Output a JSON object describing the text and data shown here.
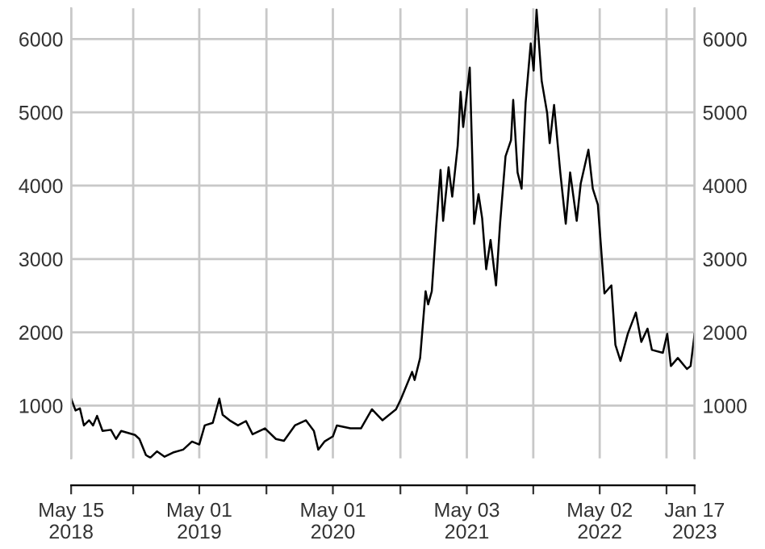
{
  "chart_data": {
    "type": "line",
    "x": [
      "2018-05-15",
      "2018-05-27",
      "2018-06-08",
      "2018-06-19",
      "2018-07-03",
      "2018-07-14",
      "2018-07-25",
      "2018-08-09",
      "2018-09-01",
      "2018-09-15",
      "2018-09-29",
      "2018-11-06",
      "2018-11-18",
      "2018-12-06",
      "2018-12-18",
      "2019-01-05",
      "2019-01-26",
      "2019-02-18",
      "2019-03-18",
      "2019-04-11",
      "2019-05-01",
      "2019-05-16",
      "2019-06-07",
      "2019-06-25",
      "2019-07-04",
      "2019-07-23",
      "2019-08-15",
      "2019-09-06",
      "2019-09-24",
      "2019-10-28",
      "2019-11-27",
      "2019-12-19",
      "2020-01-18",
      "2020-02-17",
      "2020-03-10",
      "2020-03-22",
      "2020-04-08",
      "2020-05-01",
      "2020-05-12",
      "2020-06-18",
      "2020-07-17",
      "2020-08-16",
      "2020-09-14",
      "2020-10-21",
      "2020-11-04",
      "2020-12-04",
      "2020-12-11",
      "2020-12-26",
      "2021-01-10",
      "2021-01-17",
      "2021-01-27",
      "2021-02-08",
      "2021-02-20",
      "2021-02-27",
      "2021-03-14",
      "2021-03-24",
      "2021-04-08",
      "2021-04-16",
      "2021-04-23",
      "2021-05-11",
      "2021-05-23",
      "2021-06-04",
      "2021-06-14",
      "2021-06-25",
      "2021-07-07",
      "2021-07-22",
      "2021-08-02",
      "2021-08-17",
      "2021-09-01",
      "2021-09-07",
      "2021-09-19",
      "2021-09-30",
      "2021-10-11",
      "2021-10-25",
      "2021-11-02",
      "2021-11-10",
      "2021-11-24",
      "2021-12-09",
      "2021-12-16",
      "2021-12-28",
      "2022-01-14",
      "2022-01-29",
      "2022-02-10",
      "2022-02-28",
      "2022-03-11",
      "2022-04-01",
      "2022-04-13",
      "2022-04-27",
      "2022-05-09",
      "2022-05-15",
      "2022-06-03",
      "2022-06-14",
      "2022-06-28",
      "2022-07-18",
      "2022-08-09",
      "2022-08-24",
      "2022-09-10",
      "2022-09-22",
      "2022-10-22",
      "2022-11-03",
      "2022-11-13",
      "2022-12-02",
      "2022-12-27",
      "2023-01-06",
      "2023-01-17"
    ],
    "series": [
      {
        "color": "#000000",
        "values": [
          1095,
          934,
          963,
          730,
          800,
          730,
          860,
          655,
          670,
          545,
          655,
          600,
          545,
          325,
          290,
          376,
          303,
          360,
          400,
          510,
          470,
          730,
          765,
          1095,
          875,
          800,
          730,
          790,
          610,
          690,
          545,
          520,
          730,
          800,
          655,
          400,
          510,
          580,
          730,
          690,
          690,
          950,
          800,
          950,
          1095,
          1460,
          1350,
          1650,
          2560,
          2380,
          2560,
          3440,
          4215,
          3520,
          4250,
          3850,
          4545,
          5280,
          4800,
          5610,
          3480,
          3885,
          3555,
          2860,
          3260,
          2640,
          3480,
          4400,
          4620,
          5170,
          4180,
          3960,
          5130,
          5940,
          5570,
          6400,
          5430,
          4990,
          4580,
          5100,
          4180,
          3480,
          4180,
          3520,
          4030,
          4490,
          3960,
          3740,
          2930,
          2530,
          2640,
          1830,
          1610,
          1980,
          2270,
          1870,
          2050,
          1760,
          1720,
          1980,
          1540,
          1650,
          1500,
          1540,
          1980
        ]
      }
    ],
    "xlim": [
      "2018-05-15",
      "2023-01-17"
    ],
    "xticks": [
      {
        "value": "2018-05-15",
        "label": "May 15\n2018"
      },
      {
        "value": "2018-11-01",
        "label": null
      },
      {
        "value": "2019-05-01",
        "label": "May 01\n2019"
      },
      {
        "value": "2019-11-01",
        "label": null
      },
      {
        "value": "2020-05-01",
        "label": "May 01\n2020"
      },
      {
        "value": "2020-11-02",
        "label": null
      },
      {
        "value": "2021-05-03",
        "label": "May 03\n2021"
      },
      {
        "value": "2021-11-01",
        "label": null
      },
      {
        "value": "2022-05-02",
        "label": "May 02\n2022"
      },
      {
        "value": "2022-11-01",
        "label": null
      },
      {
        "value": "2023-01-17",
        "label": "Jan 17\n2023"
      }
    ],
    "ylim": [
      280,
      6420
    ],
    "yticks": [
      1000,
      2000,
      3000,
      4000,
      5000,
      6000
    ],
    "y2lim": [
      280,
      6420
    ],
    "y2ticks": [
      1000,
      2000,
      3000,
      4000,
      5000,
      6000
    ],
    "grid": true,
    "marker": "none",
    "line_style": "solid"
  }
}
